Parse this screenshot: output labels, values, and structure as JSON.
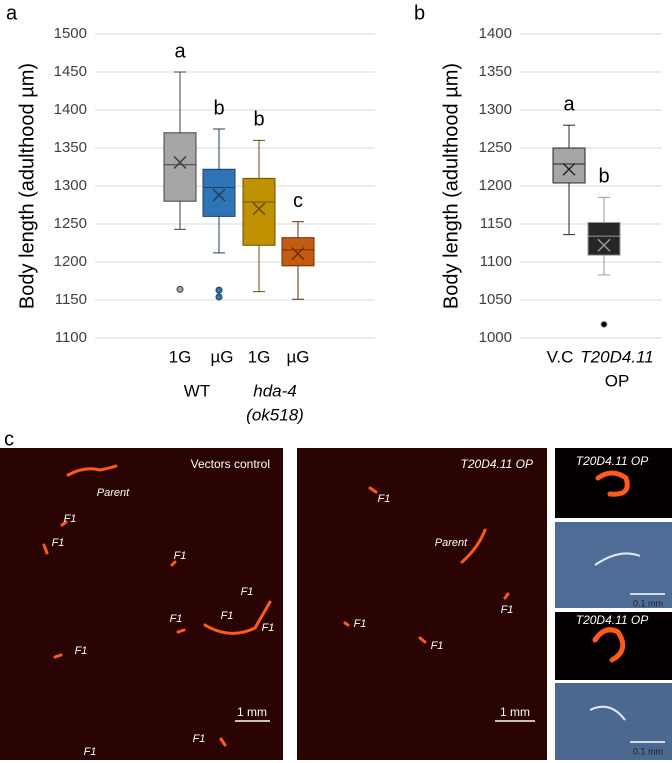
{
  "panel_labels": [
    "a",
    "b",
    "c"
  ],
  "chart_data": [
    {
      "type": "box",
      "y_label": "Body length (adulthood  µm)",
      "ylim": [
        1100,
        1500
      ],
      "yticks": [
        1100,
        1150,
        1200,
        1250,
        1300,
        1350,
        1400,
        1450,
        1500
      ],
      "grid": true,
      "categories": [
        [
          "1G"
        ],
        [
          "µG"
        ],
        [
          "1G"
        ],
        [
          "µG"
        ]
      ],
      "groups": [
        {
          "lines": [
            "WT"
          ],
          "italic": false
        },
        {
          "lines": [
            "hda-4",
            "(ok518)"
          ],
          "italic": true
        }
      ],
      "boxes": [
        {
          "min": 1243,
          "q1": 1280,
          "median": 1328,
          "q3": 1370,
          "max": 1450,
          "mean": 1331,
          "outliers": [
            1164
          ],
          "color": "#a6a6a6",
          "line_color": "#404040",
          "letter": "a"
        },
        {
          "min": 1212,
          "q1": 1260,
          "median": 1298,
          "q3": 1322,
          "max": 1375,
          "mean": 1288,
          "outliers": [
            1163,
            1154
          ],
          "color": "#2e75b6",
          "line_color": "#1f3f60",
          "letter": "b"
        },
        {
          "min": 1161,
          "q1": 1222,
          "median": 1279,
          "q3": 1310,
          "max": 1360,
          "mean": 1270,
          "outliers": [],
          "color": "#bf9000",
          "line_color": "#6b5000",
          "letter": "b"
        },
        {
          "min": 1151,
          "q1": 1195,
          "median": 1216,
          "q3": 1232,
          "max": 1253,
          "mean": 1211,
          "outliers": [],
          "color": "#c55a11",
          "line_color": "#6b2e08",
          "letter": "c"
        }
      ]
    },
    {
      "type": "box",
      "y_label": "Body length (adulthood  µm)",
      "ylim": [
        1000,
        1400
      ],
      "yticks": [
        1000,
        1050,
        1100,
        1150,
        1200,
        1250,
        1300,
        1350,
        1400
      ],
      "grid": true,
      "categories": [
        [
          "V.C"
        ],
        [
          "T20D4.11",
          "OP"
        ]
      ],
      "boxes": [
        {
          "min": 1136,
          "q1": 1204,
          "median": 1229,
          "q3": 1250,
          "max": 1280,
          "mean": 1222,
          "outliers": [],
          "color": "#a6a6a6",
          "line_color": "#262626",
          "letter": "a"
        },
        {
          "min": 1083,
          "q1": 1109,
          "median": 1134,
          "q3": 1152,
          "max": 1185,
          "mean": 1122,
          "outliers": [
            1018
          ],
          "color": "#262626",
          "line_color": "#9a9a9a",
          "letter": "b"
        }
      ]
    }
  ],
  "panel_c": {
    "control": {
      "title": "Vectors control",
      "labels": [
        "Parent",
        "F1",
        "F1",
        "F1",
        "F1",
        "F1",
        "F1",
        "F1",
        "F1",
        "F1",
        "F1"
      ],
      "scale": "1 mm"
    },
    "overexpression": {
      "title": "T20D4.11 OP",
      "labels": [
        "F1",
        "Parent",
        "F1",
        "F1",
        "F1"
      ],
      "scale": "1 mm"
    },
    "closeups": [
      {
        "title": "T20D4.11 OP",
        "scale": "0.1 mm"
      },
      {
        "title": "T20D4.11 OP",
        "scale": "0.1 mm"
      }
    ]
  }
}
